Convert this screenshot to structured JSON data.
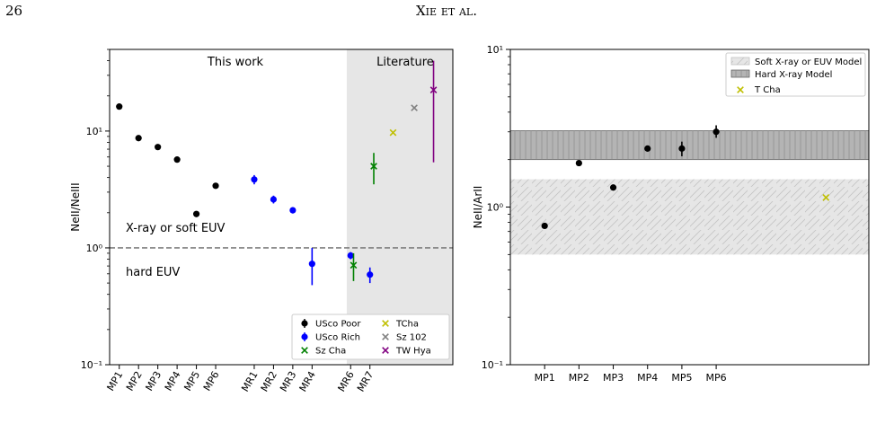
{
  "header": {
    "page_number": "26",
    "running_title": "Xie et al."
  },
  "colors": {
    "usco_poor": "#000000",
    "usco_rich": "#0000ff",
    "sz_cha": "#008000",
    "tcha": "#bfbf00",
    "sz102": "#808080",
    "tw_hya": "#800080",
    "literature_bg": "#e6e6e6",
    "dashed": "#808080"
  },
  "chart_data": [
    {
      "type": "scatter",
      "title": "",
      "xlabel": "",
      "ylabel": "NeII/NeIII",
      "yscale": "log",
      "ylim": [
        0.1,
        50
      ],
      "yticks": [
        {
          "value": 0.1,
          "label": "10⁻¹"
        },
        {
          "value": 1,
          "label": "10⁰"
        },
        {
          "value": 10,
          "label": "10¹"
        }
      ],
      "categories": [
        "MP1",
        "MP2",
        "MP3",
        "MP4",
        "MP5",
        "MP6",
        "MR1",
        "MR2",
        "MR3",
        "MR4",
        "MR6",
        "MR7"
      ],
      "annotations": {
        "this_work": "This work",
        "literature": "Literature",
        "upper_region": "X-ray or soft EUV",
        "lower_region": "hard EUV",
        "reference_line": 1.0
      },
      "legend_placement": "lower-right",
      "series": [
        {
          "name": "USco Poor",
          "marker": "circle",
          "color": "#000000",
          "points": [
            {
              "x": "MP1",
              "y": 16.2
            },
            {
              "x": "MP2",
              "y": 8.7
            },
            {
              "x": "MP3",
              "y": 7.3
            },
            {
              "x": "MP4",
              "y": 5.7
            },
            {
              "x": "MP5",
              "y": 1.95
            },
            {
              "x": "MP6",
              "y": 3.4
            }
          ]
        },
        {
          "name": "USco Rich",
          "marker": "circle",
          "color": "#0000ff",
          "points": [
            {
              "x": "MR1",
              "y": 3.85,
              "ylo": 3.5,
              "yhi": 4.2
            },
            {
              "x": "MR2",
              "y": 2.6,
              "ylo": 2.4,
              "yhi": 2.8
            },
            {
              "x": "MR3",
              "y": 2.1,
              "ylo": 1.97,
              "yhi": 2.23
            },
            {
              "x": "MR4",
              "y": 0.73,
              "ylo": 0.48,
              "yhi": 1.0
            },
            {
              "x": "MR6",
              "y": 0.86,
              "ylo": 0.8,
              "yhi": 0.92
            },
            {
              "x": "MR7",
              "y": 0.59,
              "ylo": 0.5,
              "yhi": 0.68
            }
          ]
        },
        {
          "name": "Sz Cha",
          "marker": "x",
          "color": "#008000",
          "points": [
            {
              "pos": 12.15,
              "y": 0.71,
              "ylo": 0.52,
              "yhi": 0.9
            },
            {
              "pos": 13.2,
              "y": 5.0,
              "ylo": 3.5,
              "yhi": 6.5
            }
          ]
        },
        {
          "name": "TCha",
          "marker": "x",
          "color": "#bfbf00",
          "points": [
            {
              "pos": 14.2,
              "y": 9.7
            }
          ]
        },
        {
          "name": "Sz 102",
          "marker": "x",
          "color": "#808080",
          "points": [
            {
              "pos": 15.3,
              "y": 15.8
            }
          ]
        },
        {
          "name": "TW Hya",
          "marker": "x",
          "color": "#800080",
          "points": [
            {
              "pos": 16.3,
              "y": 22.5,
              "ylo": 5.4,
              "yhi": 40
            }
          ]
        }
      ]
    },
    {
      "type": "scatter",
      "title": "",
      "xlabel": "",
      "ylabel": "NeII/ArII",
      "yscale": "log",
      "ylim": [
        0.1,
        10
      ],
      "yticks": [
        {
          "value": 0.1,
          "label": "10⁻¹"
        },
        {
          "value": 1,
          "label": "10⁰"
        },
        {
          "value": 10,
          "label": "10¹"
        }
      ],
      "categories": [
        "MP1",
        "MP2",
        "MP3",
        "MP4",
        "MP5",
        "MP6"
      ],
      "legend_placement": "top-right",
      "bands": [
        {
          "name": "Soft X-ray or EUV Model",
          "ylo": 0.5,
          "yhi": 1.5,
          "style": "diagonal-hatch",
          "color": "#e6e6e6"
        },
        {
          "name": "Hard X-ray Model",
          "ylo": 2.0,
          "yhi": 3.05,
          "style": "vertical-hatch",
          "color": "#b4b4b4"
        }
      ],
      "series": [
        {
          "name": "",
          "marker": "circle",
          "color": "#000000",
          "points": [
            {
              "x": "MP1",
              "y": 0.76
            },
            {
              "x": "MP2",
              "y": 1.9
            },
            {
              "x": "MP3",
              "y": 1.33
            },
            {
              "x": "MP4",
              "y": 2.35
            },
            {
              "x": "MP5",
              "y": 2.35,
              "ylo": 2.1,
              "yhi": 2.6
            },
            {
              "x": "MP6",
              "y": 3.0,
              "ylo": 2.75,
              "yhi": 3.3
            }
          ]
        },
        {
          "name": "T Cha",
          "marker": "x",
          "color": "#bfbf00",
          "points": [
            {
              "pos": 8.2,
              "y": 1.15
            }
          ]
        }
      ]
    }
  ]
}
